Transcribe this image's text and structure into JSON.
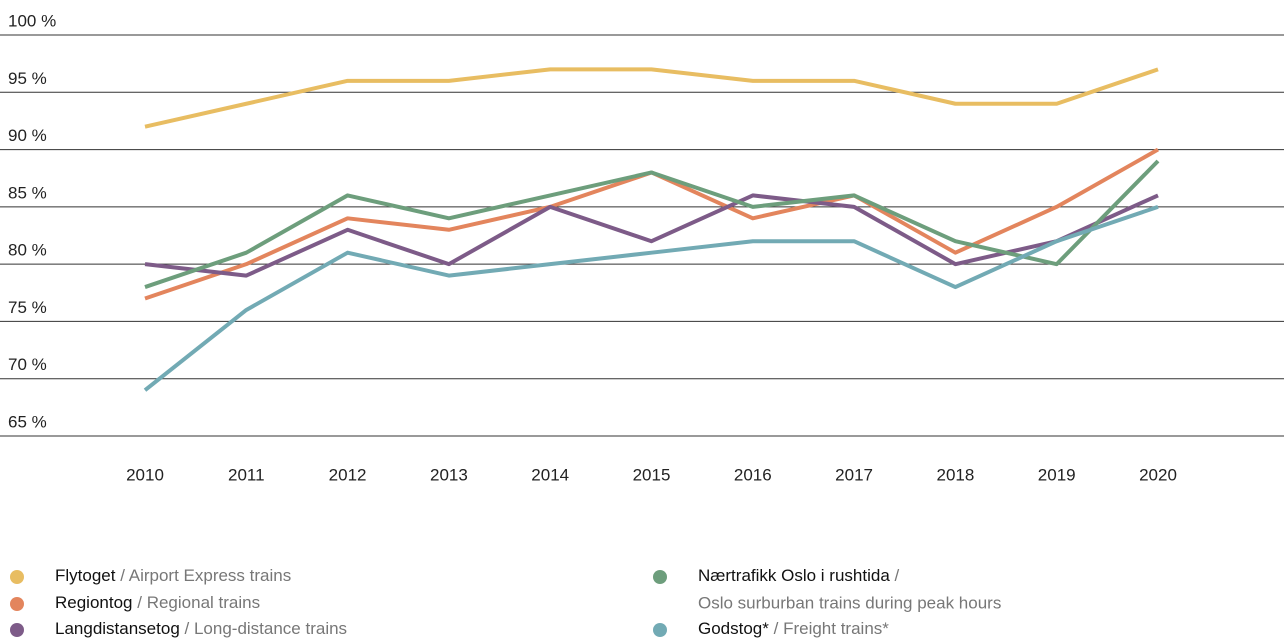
{
  "chart_data": {
    "type": "line",
    "x": [
      2010,
      2011,
      2012,
      2013,
      2014,
      2015,
      2016,
      2017,
      2018,
      2019,
      2020
    ],
    "ylim": [
      65,
      100
    ],
    "yticks": [
      {
        "value": 65,
        "label": "65 %"
      },
      {
        "value": 70,
        "label": "70 %"
      },
      {
        "value": 75,
        "label": "75 %"
      },
      {
        "value": 80,
        "label": "80 %"
      },
      {
        "value": 85,
        "label": "85 %"
      },
      {
        "value": 90,
        "label": "90 %"
      },
      {
        "value": 95,
        "label": "95 %"
      },
      {
        "value": 100,
        "label": "100 %"
      }
    ],
    "grid": true,
    "series": [
      {
        "name": "Flytoget",
        "description": "/ Airport Express trains",
        "color": "#e8bd62",
        "values": [
          92,
          94,
          96,
          96,
          97,
          97,
          96,
          96,
          94,
          94,
          97
        ]
      },
      {
        "name": "Regiontog",
        "description": "/ Regional trains",
        "color": "#e3855d",
        "values": [
          77,
          80,
          84,
          83,
          85,
          88,
          84,
          86,
          81,
          85,
          90
        ]
      },
      {
        "name": "Langdistansetog",
        "description": "/ Long-distance trains",
        "color": "#7d5b88",
        "values": [
          80,
          79,
          83,
          80,
          85,
          82,
          86,
          85,
          80,
          82,
          86
        ]
      },
      {
        "name": "Nærtrafikk Oslo i rushtida",
        "description": "/",
        "description_line2": "Oslo surburban trains during peak hours",
        "color": "#6d9e7c",
        "values": [
          78,
          81,
          86,
          84,
          86,
          88,
          85,
          86,
          82,
          80,
          89
        ]
      },
      {
        "name": "Godstog*",
        "description": "/ Freight trains*",
        "color": "#72aab4",
        "values": [
          69,
          76,
          81,
          79,
          80,
          81,
          82,
          82,
          78,
          82,
          85
        ]
      }
    ]
  }
}
